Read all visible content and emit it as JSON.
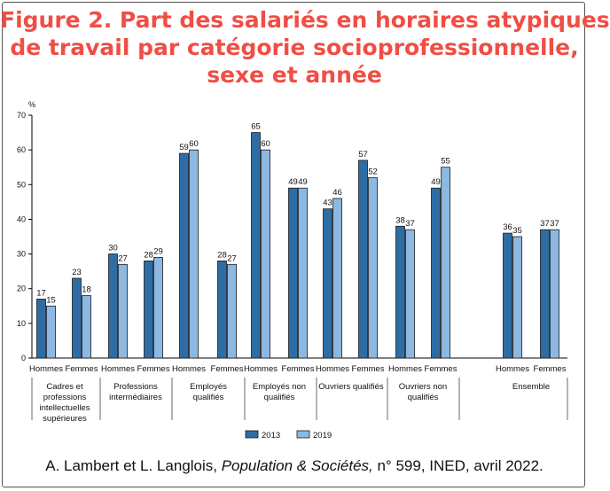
{
  "title_lines": [
    "Figure 2. Part des salariés en horaires atypiques",
    "de travail par catégorie socioprofessionnelle,",
    "sexe et année"
  ],
  "source": {
    "prefix": "A. Lambert et L. Langlois, ",
    "journal": "Population & Sociétés,",
    "suffix": " n° 599, INED, avril 2022."
  },
  "colors": {
    "title": "#f04e45",
    "series_2013": "#2e6da4",
    "series_2019": "#8cb8e2"
  },
  "chart_data": {
    "type": "bar",
    "ylabel": "%",
    "ylim": [
      0,
      70
    ],
    "yticks": [
      0,
      10,
      20,
      30,
      40,
      50,
      60,
      70
    ],
    "grid": false,
    "legend": "bottom-center",
    "series": [
      {
        "name": "2013",
        "values": [
          17,
          23,
          30,
          28,
          59,
          28,
          65,
          49,
          43,
          57,
          38,
          49,
          36,
          37
        ]
      },
      {
        "name": "2019",
        "values": [
          15,
          18,
          27,
          29,
          60,
          27,
          60,
          49,
          46,
          52,
          37,
          55,
          35,
          37
        ]
      }
    ],
    "categories": [
      "Hommes",
      "Femmes",
      "Hommes",
      "Femmes",
      "Hommes",
      "Femmes",
      "Hommes",
      "Femmes",
      "Hommes",
      "Femmes",
      "Hommes",
      "Femmes",
      "Hommes",
      "Femmes"
    ],
    "groups": [
      {
        "label_lines": [
          "Cadres et",
          "professions",
          "intellectuelles",
          "supérieures"
        ]
      },
      {
        "label_lines": [
          "Professions",
          "intermédiaires"
        ]
      },
      {
        "label_lines": [
          "Employés",
          "qualifiés"
        ]
      },
      {
        "label_lines": [
          "Employés non",
          "qualifiés"
        ]
      },
      {
        "label_lines": [
          "Ouvriers qualifiés"
        ]
      },
      {
        "label_lines": [
          "Ouvriers non",
          "qualifiés"
        ]
      },
      {
        "label_lines": [
          "Ensemble"
        ]
      }
    ]
  }
}
